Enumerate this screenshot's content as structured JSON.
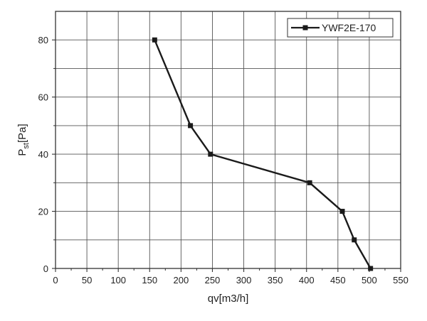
{
  "chart_data": {
    "type": "line",
    "title": "",
    "xlabel": "qv[m3/h]",
    "ylabel_main": "P",
    "ylabel_sub": "st",
    "ylabel_tail": "[Pa]",
    "xlim": [
      0,
      550
    ],
    "ylim": [
      0,
      90
    ],
    "x_ticks": [
      0,
      50,
      100,
      150,
      200,
      250,
      300,
      350,
      400,
      450,
      500,
      550
    ],
    "y_ticks": [
      0,
      20,
      40,
      60,
      80
    ],
    "grid": true,
    "legend_position": "top-right",
    "series": [
      {
        "name": "YWF2E-170",
        "color": "#1a1a1a",
        "marker": "square",
        "x": [
          158,
          215,
          247,
          405,
          457,
          476,
          502
        ],
        "y": [
          80,
          50,
          40,
          30,
          20,
          10,
          0
        ]
      }
    ]
  }
}
